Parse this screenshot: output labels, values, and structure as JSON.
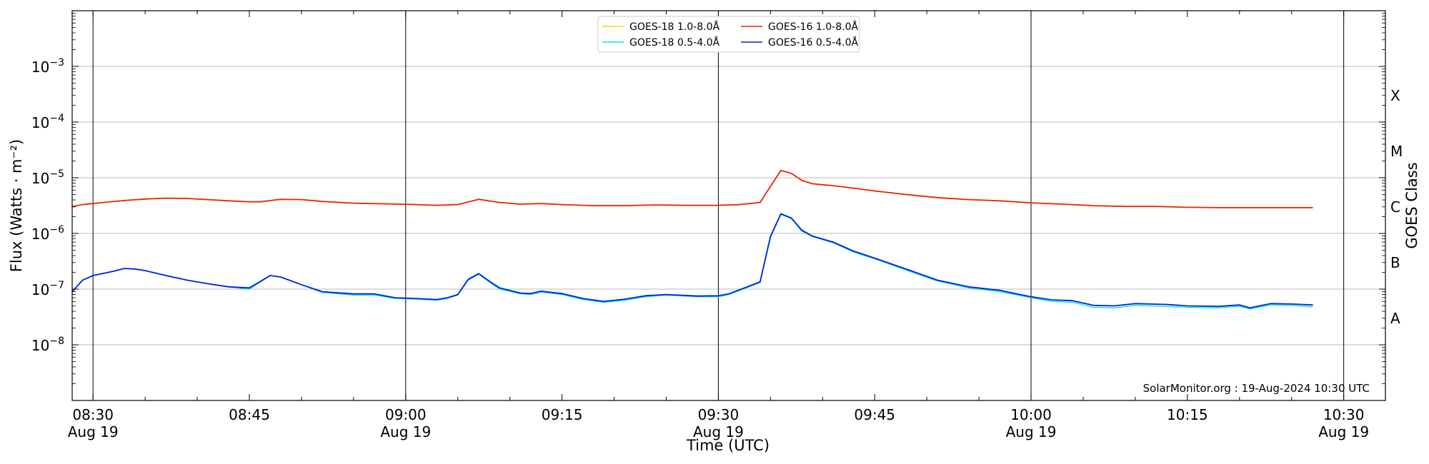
{
  "chart_data": {
    "type": "line",
    "title": "",
    "xlabel": "Time (UTC)",
    "ylabel": "Flux (Watts · m⁻²)",
    "y2label": "GOES Class",
    "yscale": "log",
    "ylim": [
      1e-09,
      0.01
    ],
    "xlim": [
      "2024-08-19T08:28",
      "2024-08-19T10:34"
    ],
    "grid": "horizontal at decades",
    "legend_position": "top-center",
    "credit": "SolarMonitor.org : 19-Aug-2024 10:30 UTC",
    "y_ticks": [
      {
        "value": 1e-08,
        "base": "10",
        "exp": "−8"
      },
      {
        "value": 1e-07,
        "base": "10",
        "exp": "−7"
      },
      {
        "value": 1e-06,
        "base": "10",
        "exp": "−6"
      },
      {
        "value": 1e-05,
        "base": "10",
        "exp": "−5"
      },
      {
        "value": 0.0001,
        "base": "10",
        "exp": "−4"
      },
      {
        "value": 0.001,
        "base": "10",
        "exp": "−3"
      }
    ],
    "class_ticks": [
      {
        "label": "A",
        "value": 3e-08
      },
      {
        "label": "B",
        "value": 3e-07
      },
      {
        "label": "C",
        "value": 3e-06
      },
      {
        "label": "M",
        "value": 3e-05
      },
      {
        "label": "X",
        "value": 0.0003
      }
    ],
    "x_ticks": [
      {
        "time": "08:30",
        "label": "08:30",
        "sub": "Aug 19"
      },
      {
        "time": "08:45",
        "label": "08:45",
        "sub": ""
      },
      {
        "time": "09:00",
        "label": "09:00",
        "sub": "Aug 19"
      },
      {
        "time": "09:15",
        "label": "09:15",
        "sub": ""
      },
      {
        "time": "09:30",
        "label": "09:30",
        "sub": "Aug 19"
      },
      {
        "time": "09:45",
        "label": "09:45",
        "sub": ""
      },
      {
        "time": "10:00",
        "label": "10:00",
        "sub": "Aug 19"
      },
      {
        "time": "10:15",
        "label": "10:15",
        "sub": ""
      },
      {
        "time": "10:30",
        "label": "10:30",
        "sub": "Aug 19"
      }
    ],
    "vlines": [
      "08:30",
      "09:00",
      "09:30",
      "10:00",
      "10:30"
    ],
    "legend": [
      {
        "name": "GOES-18 1.0-8.0Å",
        "color": "#ffd700"
      },
      {
        "name": "GOES-18 0.5-4.0Å",
        "color": "#00e5ee"
      },
      {
        "name": "GOES-16 1.0-8.0Å",
        "color": "#ee2200"
      },
      {
        "name": "GOES-16 0.5-4.0Å",
        "color": "#0022dd"
      }
    ],
    "series": [
      {
        "name": "GOES-18 1.0-8.0Å",
        "color": "#ffd700",
        "width": 1.4,
        "points": [
          [
            "08:28",
            3.05e-06
          ],
          [
            "08:29",
            3.3e-06
          ],
          [
            "08:31",
            3.6e-06
          ],
          [
            "08:33",
            3.9e-06
          ],
          [
            "08:35",
            4.15e-06
          ],
          [
            "08:37",
            4.3e-06
          ],
          [
            "08:39",
            4.25e-06
          ],
          [
            "08:41",
            4.05e-06
          ],
          [
            "08:43",
            3.85e-06
          ],
          [
            "08:45",
            3.7e-06
          ],
          [
            "08:46",
            3.7e-06
          ],
          [
            "08:48",
            4.1e-06
          ],
          [
            "08:50",
            4.05e-06
          ],
          [
            "08:52",
            3.75e-06
          ],
          [
            "08:55",
            3.5e-06
          ],
          [
            "08:58",
            3.4e-06
          ],
          [
            "09:01",
            3.3e-06
          ],
          [
            "09:03",
            3.2e-06
          ],
          [
            "09:05",
            3.3e-06
          ],
          [
            "09:07",
            4.1e-06
          ],
          [
            "09:09",
            3.6e-06
          ],
          [
            "09:11",
            3.35e-06
          ],
          [
            "09:13",
            3.45e-06
          ],
          [
            "09:15",
            3.3e-06
          ],
          [
            "09:18",
            3.15e-06
          ],
          [
            "09:21",
            3.15e-06
          ],
          [
            "09:24",
            3.25e-06
          ],
          [
            "09:27",
            3.2e-06
          ],
          [
            "09:30",
            3.2e-06
          ],
          [
            "09:32",
            3.3e-06
          ],
          [
            "09:34",
            3.6e-06
          ],
          [
            "09:35",
            7e-06
          ],
          [
            "09:36",
            1.35e-05
          ],
          [
            "09:37",
            1.2e-05
          ],
          [
            "09:38",
            9e-06
          ],
          [
            "09:39",
            7.8e-06
          ],
          [
            "09:41",
            7.2e-06
          ],
          [
            "09:43",
            6.5e-06
          ],
          [
            "09:45",
            5.8e-06
          ],
          [
            "09:48",
            5e-06
          ],
          [
            "09:51",
            4.4e-06
          ],
          [
            "09:54",
            4.05e-06
          ],
          [
            "09:57",
            3.85e-06
          ],
          [
            "10:00",
            3.55e-06
          ],
          [
            "10:03",
            3.35e-06
          ],
          [
            "10:06",
            3.15e-06
          ],
          [
            "10:09",
            3.05e-06
          ],
          [
            "10:12",
            3.05e-06
          ],
          [
            "10:15",
            2.95e-06
          ],
          [
            "10:18",
            2.9e-06
          ],
          [
            "10:21",
            2.9e-06
          ],
          [
            "10:24",
            2.9e-06
          ],
          [
            "10:27",
            2.9e-06
          ]
        ]
      },
      {
        "name": "GOES-18 0.5-4.0Å",
        "color": "#00e5ee",
        "width": 1.4,
        "points": [
          [
            "08:28",
            9e-08
          ],
          [
            "08:29",
            1.45e-07
          ],
          [
            "08:30",
            1.75e-07
          ],
          [
            "08:32",
            2.1e-07
          ],
          [
            "08:33",
            2.35e-07
          ],
          [
            "08:34",
            2.3e-07
          ],
          [
            "08:35",
            2.15e-07
          ],
          [
            "08:37",
            1.75e-07
          ],
          [
            "08:39",
            1.45e-07
          ],
          [
            "08:41",
            1.25e-07
          ],
          [
            "08:43",
            1.1e-07
          ],
          [
            "08:45",
            1e-07
          ],
          [
            "08:47",
            1.75e-07
          ],
          [
            "08:48",
            1.65e-07
          ],
          [
            "08:50",
            1.2e-07
          ],
          [
            "08:52",
            8.7e-08
          ],
          [
            "08:55",
            7.8e-08
          ],
          [
            "08:57",
            7.8e-08
          ],
          [
            "08:59",
            6.8e-08
          ],
          [
            "09:01",
            6.6e-08
          ],
          [
            "09:03",
            6.3e-08
          ],
          [
            "09:04",
            6.8e-08
          ],
          [
            "09:05",
            7.8e-08
          ],
          [
            "09:06",
            1.45e-07
          ],
          [
            "09:07",
            1.85e-07
          ],
          [
            "09:08",
            1.35e-07
          ],
          [
            "09:09",
            1e-07
          ],
          [
            "09:11",
            8.2e-08
          ],
          [
            "09:12",
            8e-08
          ],
          [
            "09:13",
            8.8e-08
          ],
          [
            "09:15",
            8e-08
          ],
          [
            "09:17",
            6.5e-08
          ],
          [
            "09:19",
            5.8e-08
          ],
          [
            "09:21",
            6.3e-08
          ],
          [
            "09:23",
            7.3e-08
          ],
          [
            "09:25",
            7.8e-08
          ],
          [
            "09:28",
            7.3e-08
          ],
          [
            "09:30",
            7.3e-08
          ],
          [
            "09:31",
            8e-08
          ],
          [
            "09:34",
            1.3e-07
          ],
          [
            "09:35",
            8.5e-07
          ],
          [
            "09:36",
            2.2e-06
          ],
          [
            "09:37",
            1.85e-06
          ],
          [
            "09:38",
            1.1e-06
          ],
          [
            "09:39",
            8.8e-07
          ],
          [
            "09:41",
            6.8e-07
          ],
          [
            "09:42",
            5.6e-07
          ],
          [
            "09:43",
            4.6e-07
          ],
          [
            "09:45",
            3.5e-07
          ],
          [
            "09:48",
            2.2e-07
          ],
          [
            "09:51",
            1.4e-07
          ],
          [
            "09:54",
            1.05e-07
          ],
          [
            "09:57",
            9e-08
          ],
          [
            "10:00",
            7e-08
          ],
          [
            "10:02",
            6e-08
          ],
          [
            "10:04",
            5.8e-08
          ],
          [
            "10:06",
            4.7e-08
          ],
          [
            "10:08",
            4.6e-08
          ],
          [
            "10:10",
            5.1e-08
          ],
          [
            "10:13",
            4.9e-08
          ],
          [
            "10:15",
            4.7e-08
          ],
          [
            "10:18",
            4.6e-08
          ],
          [
            "10:20",
            4.9e-08
          ],
          [
            "10:21",
            4.4e-08
          ],
          [
            "10:23",
            5.2e-08
          ],
          [
            "10:25",
            5.1e-08
          ],
          [
            "10:27",
            4.8e-08
          ]
        ]
      },
      {
        "name": "GOES-16 1.0-8.0Å",
        "color": "#ee2200",
        "width": 1.8,
        "points": [
          [
            "08:28",
            3.05e-06
          ],
          [
            "08:29",
            3.3e-06
          ],
          [
            "08:31",
            3.6e-06
          ],
          [
            "08:33",
            3.9e-06
          ],
          [
            "08:35",
            4.15e-06
          ],
          [
            "08:37",
            4.3e-06
          ],
          [
            "08:39",
            4.25e-06
          ],
          [
            "08:41",
            4.05e-06
          ],
          [
            "08:43",
            3.85e-06
          ],
          [
            "08:45",
            3.7e-06
          ],
          [
            "08:46",
            3.7e-06
          ],
          [
            "08:48",
            4.1e-06
          ],
          [
            "08:50",
            4.05e-06
          ],
          [
            "08:52",
            3.75e-06
          ],
          [
            "08:55",
            3.5e-06
          ],
          [
            "08:58",
            3.4e-06
          ],
          [
            "09:01",
            3.3e-06
          ],
          [
            "09:03",
            3.2e-06
          ],
          [
            "09:05",
            3.3e-06
          ],
          [
            "09:07",
            4.1e-06
          ],
          [
            "09:09",
            3.6e-06
          ],
          [
            "09:11",
            3.35e-06
          ],
          [
            "09:13",
            3.45e-06
          ],
          [
            "09:15",
            3.3e-06
          ],
          [
            "09:18",
            3.15e-06
          ],
          [
            "09:21",
            3.15e-06
          ],
          [
            "09:24",
            3.25e-06
          ],
          [
            "09:27",
            3.2e-06
          ],
          [
            "09:30",
            3.2e-06
          ],
          [
            "09:32",
            3.3e-06
          ],
          [
            "09:34",
            3.6e-06
          ],
          [
            "09:35",
            7e-06
          ],
          [
            "09:36",
            1.35e-05
          ],
          [
            "09:37",
            1.2e-05
          ],
          [
            "09:38",
            9e-06
          ],
          [
            "09:39",
            7.8e-06
          ],
          [
            "09:41",
            7.2e-06
          ],
          [
            "09:43",
            6.5e-06
          ],
          [
            "09:45",
            5.8e-06
          ],
          [
            "09:48",
            5e-06
          ],
          [
            "09:51",
            4.4e-06
          ],
          [
            "09:54",
            4.05e-06
          ],
          [
            "09:57",
            3.85e-06
          ],
          [
            "10:00",
            3.55e-06
          ],
          [
            "10:03",
            3.35e-06
          ],
          [
            "10:06",
            3.15e-06
          ],
          [
            "10:09",
            3.05e-06
          ],
          [
            "10:12",
            3.05e-06
          ],
          [
            "10:15",
            2.95e-06
          ],
          [
            "10:18",
            2.9e-06
          ],
          [
            "10:21",
            2.9e-06
          ],
          [
            "10:24",
            2.9e-06
          ],
          [
            "10:27",
            2.9e-06
          ]
        ]
      },
      {
        "name": "GOES-16 0.5-4.0Å",
        "color": "#0022dd",
        "width": 1.8,
        "points": [
          [
            "08:28",
            9e-08
          ],
          [
            "08:29",
            1.45e-07
          ],
          [
            "08:30",
            1.75e-07
          ],
          [
            "08:32",
            2.1e-07
          ],
          [
            "08:33",
            2.35e-07
          ],
          [
            "08:34",
            2.3e-07
          ],
          [
            "08:35",
            2.15e-07
          ],
          [
            "08:37",
            1.75e-07
          ],
          [
            "08:39",
            1.45e-07
          ],
          [
            "08:41",
            1.25e-07
          ],
          [
            "08:43",
            1.1e-07
          ],
          [
            "08:45",
            1.05e-07
          ],
          [
            "08:47",
            1.75e-07
          ],
          [
            "08:48",
            1.65e-07
          ],
          [
            "08:50",
            1.2e-07
          ],
          [
            "08:52",
            9e-08
          ],
          [
            "08:55",
            8.2e-08
          ],
          [
            "08:57",
            8.2e-08
          ],
          [
            "08:59",
            7e-08
          ],
          [
            "09:01",
            6.8e-08
          ],
          [
            "09:03",
            6.5e-08
          ],
          [
            "09:04",
            7e-08
          ],
          [
            "09:05",
            8e-08
          ],
          [
            "09:06",
            1.5e-07
          ],
          [
            "09:07",
            1.9e-07
          ],
          [
            "09:08",
            1.4e-07
          ],
          [
            "09:09",
            1.05e-07
          ],
          [
            "09:11",
            8.5e-08
          ],
          [
            "09:12",
            8.3e-08
          ],
          [
            "09:13",
            9.2e-08
          ],
          [
            "09:15",
            8.3e-08
          ],
          [
            "09:17",
            6.8e-08
          ],
          [
            "09:19",
            6e-08
          ],
          [
            "09:21",
            6.6e-08
          ],
          [
            "09:23",
            7.6e-08
          ],
          [
            "09:25",
            8e-08
          ],
          [
            "09:28",
            7.5e-08
          ],
          [
            "09:30",
            7.6e-08
          ],
          [
            "09:31",
            8.2e-08
          ],
          [
            "09:34",
            1.35e-07
          ],
          [
            "09:35",
            8.8e-07
          ],
          [
            "09:36",
            2.25e-06
          ],
          [
            "09:37",
            1.9e-06
          ],
          [
            "09:38",
            1.15e-06
          ],
          [
            "09:39",
            9e-07
          ],
          [
            "09:41",
            7e-07
          ],
          [
            "09:42",
            5.8e-07
          ],
          [
            "09:43",
            4.8e-07
          ],
          [
            "09:45",
            3.6e-07
          ],
          [
            "09:48",
            2.3e-07
          ],
          [
            "09:51",
            1.45e-07
          ],
          [
            "09:54",
            1.1e-07
          ],
          [
            "09:57",
            9.5e-08
          ],
          [
            "10:00",
            7.3e-08
          ],
          [
            "10:02",
            6.4e-08
          ],
          [
            "10:04",
            6.2e-08
          ],
          [
            "10:06",
            5.1e-08
          ],
          [
            "10:08",
            5e-08
          ],
          [
            "10:10",
            5.5e-08
          ],
          [
            "10:13",
            5.3e-08
          ],
          [
            "10:15",
            5e-08
          ],
          [
            "10:18",
            4.9e-08
          ],
          [
            "10:20",
            5.2e-08
          ],
          [
            "10:21",
            4.6e-08
          ],
          [
            "10:23",
            5.5e-08
          ],
          [
            "10:25",
            5.4e-08
          ],
          [
            "10:27",
            5.2e-08
          ]
        ]
      }
    ]
  }
}
